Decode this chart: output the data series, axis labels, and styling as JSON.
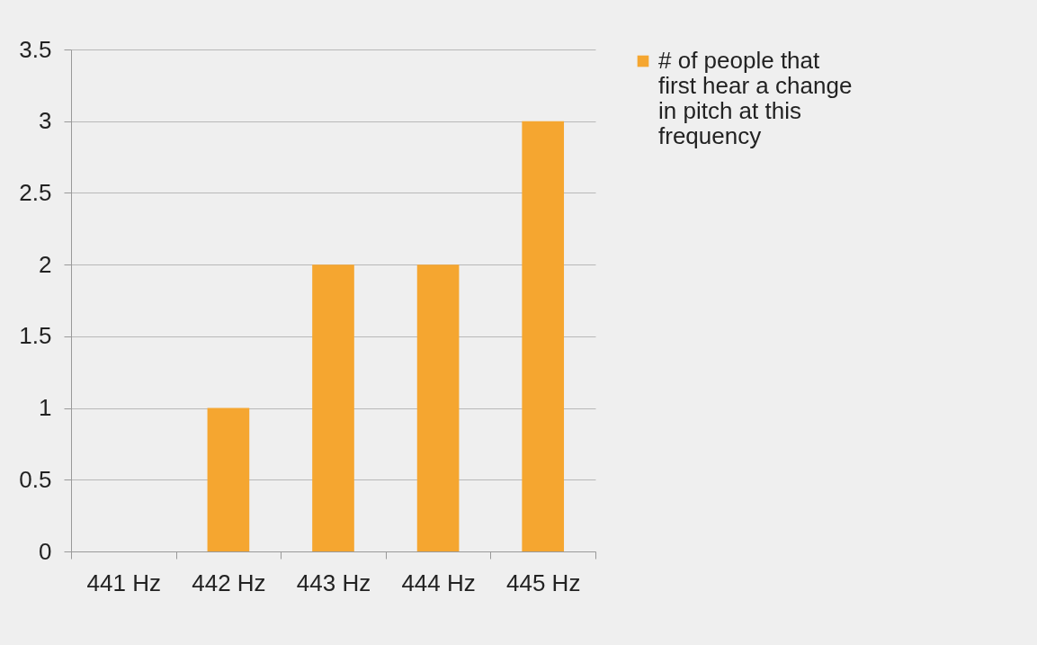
{
  "chart_data": {
    "type": "bar",
    "categories": [
      "441 Hz",
      "442 Hz",
      "443 Hz",
      "444 Hz",
      "445 Hz"
    ],
    "series": [
      {
        "name": "# of people that first hear a change in pitch at this frequency",
        "color": "#f5a630",
        "values": [
          0,
          1,
          2,
          2,
          3
        ]
      }
    ],
    "ylim": [
      0,
      3.5
    ],
    "yticks": [
      0,
      0.5,
      1,
      1.5,
      2,
      2.5,
      3,
      3.5
    ],
    "grid": "y",
    "legend": "right"
  }
}
